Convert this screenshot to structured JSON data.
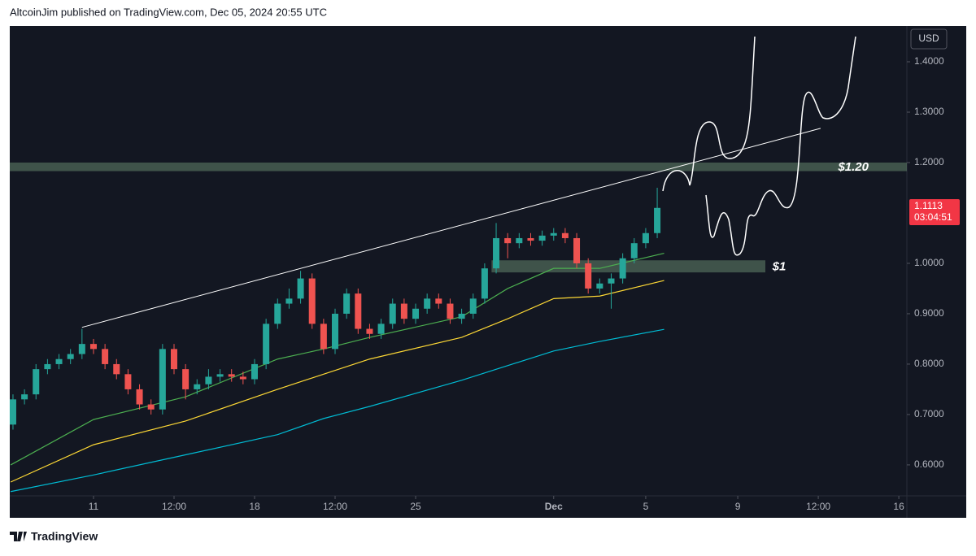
{
  "header": {
    "text": "AltcoinJim published on TradingView.com, Dec 05, 2024 20:55 UTC"
  },
  "footer": {
    "brand": "TradingView"
  },
  "chart_data": {
    "type": "candlestick",
    "currency": "USD",
    "x": [
      -3.5,
      -3,
      -2.5,
      -2,
      -1.5,
      -1,
      -0.5,
      0,
      0.5,
      1,
      1.5,
      2,
      2.5,
      3,
      3.5,
      4,
      4.5,
      5,
      5.5,
      6,
      6.5,
      7,
      7.5,
      8,
      8.5,
      9,
      9.5,
      10,
      10.5,
      11,
      11.5,
      12,
      12.5,
      13,
      13.5,
      14,
      14.5,
      15,
      15.5,
      16,
      16.5,
      17,
      17.5,
      18,
      18.5,
      19,
      19.5,
      20,
      20.5,
      21,
      21.5,
      22,
      22.5,
      23,
      23.5,
      24,
      24.5
    ],
    "open": [
      0.68,
      0.73,
      0.74,
      0.79,
      0.8,
      0.81,
      0.82,
      0.84,
      0.83,
      0.8,
      0.78,
      0.75,
      0.72,
      0.71,
      0.83,
      0.79,
      0.75,
      0.76,
      0.775,
      0.78,
      0.775,
      0.77,
      0.8,
      0.88,
      0.92,
      0.93,
      0.97,
      0.88,
      0.83,
      0.9,
      0.94,
      0.87,
      0.86,
      0.88,
      0.92,
      0.89,
      0.91,
      0.93,
      0.92,
      0.89,
      0.9,
      0.93,
      0.99,
      1.05,
      1.04,
      1.05,
      1.045,
      1.055,
      1.06,
      1.05,
      1.0,
      0.95,
      0.96,
      0.97,
      1.01,
      1.04,
      1.06
    ],
    "high": [
      0.74,
      0.75,
      0.8,
      0.81,
      0.82,
      0.83,
      0.87,
      0.85,
      0.84,
      0.81,
      0.79,
      0.76,
      0.73,
      0.84,
      0.84,
      0.8,
      0.77,
      0.79,
      0.79,
      0.79,
      0.785,
      0.81,
      0.89,
      0.93,
      0.95,
      0.985,
      0.98,
      0.89,
      0.91,
      0.95,
      0.95,
      0.88,
      0.89,
      0.93,
      0.93,
      0.92,
      0.94,
      0.94,
      0.93,
      0.91,
      0.94,
      1.0,
      1.08,
      1.06,
      1.06,
      1.06,
      1.065,
      1.07,
      1.07,
      1.06,
      1.01,
      0.97,
      0.98,
      1.02,
      1.05,
      1.07,
      1.15
    ],
    "low": [
      0.67,
      0.72,
      0.73,
      0.78,
      0.79,
      0.8,
      0.81,
      0.82,
      0.79,
      0.77,
      0.74,
      0.71,
      0.7,
      0.7,
      0.78,
      0.73,
      0.74,
      0.75,
      0.765,
      0.765,
      0.76,
      0.76,
      0.79,
      0.87,
      0.91,
      0.92,
      0.87,
      0.82,
      0.82,
      0.89,
      0.86,
      0.85,
      0.85,
      0.87,
      0.88,
      0.88,
      0.9,
      0.91,
      0.88,
      0.88,
      0.89,
      0.92,
      0.98,
      1.01,
      1.03,
      1.035,
      1.035,
      1.045,
      1.04,
      0.99,
      0.94,
      0.94,
      0.91,
      0.96,
      1.0,
      1.03,
      1.05
    ],
    "close": [
      0.73,
      0.74,
      0.79,
      0.8,
      0.81,
      0.82,
      0.84,
      0.83,
      0.8,
      0.78,
      0.75,
      0.72,
      0.71,
      0.83,
      0.79,
      0.75,
      0.76,
      0.775,
      0.78,
      0.775,
      0.77,
      0.8,
      0.88,
      0.92,
      0.93,
      0.97,
      0.88,
      0.83,
      0.9,
      0.94,
      0.87,
      0.86,
      0.88,
      0.92,
      0.89,
      0.91,
      0.93,
      0.92,
      0.89,
      0.9,
      0.93,
      0.99,
      1.05,
      1.04,
      1.05,
      1.045,
      1.055,
      1.06,
      1.05,
      1.0,
      0.95,
      0.96,
      0.97,
      1.01,
      1.04,
      1.06,
      1.11
    ],
    "up_color": "#26a69a",
    "down_color": "#ef5350",
    "moving_averages": [
      {
        "color": "#4caf50",
        "x": [
          -3.6,
          0,
          4,
          8,
          10,
          12,
          16,
          18,
          20,
          22,
          24.8
        ],
        "values": [
          0.6,
          0.69,
          0.735,
          0.81,
          0.83,
          0.853,
          0.894,
          0.95,
          0.99,
          0.99,
          1.02
        ]
      },
      {
        "color": "#fdd835",
        "x": [
          -3.6,
          0,
          4,
          8,
          12,
          16,
          18,
          20,
          22,
          24.8
        ],
        "values": [
          0.566,
          0.64,
          0.687,
          0.75,
          0.81,
          0.853,
          0.89,
          0.93,
          0.935,
          0.966
        ]
      },
      {
        "color": "#00bcd4",
        "x": [
          -3.6,
          0,
          4,
          8,
          10,
          12,
          16,
          20,
          22,
          24.8
        ],
        "values": [
          0.547,
          0.58,
          0.62,
          0.66,
          0.692,
          0.716,
          0.768,
          0.826,
          0.845,
          0.869
        ]
      }
    ],
    "zones": [
      {
        "label": "$1.20",
        "low": 1.183,
        "high": 1.2,
        "x": [
          -3.64,
          35.35
        ]
      },
      {
        "label": "$1",
        "low": 0.982,
        "high": 1.006,
        "x": [
          17.3,
          29.2
        ]
      }
    ],
    "trendline": {
      "x": [
        -0.5,
        31.6
      ],
      "y": [
        0.873,
        1.268
      ]
    },
    "last_price": 1.1113,
    "countdown": "03:04:51",
    "xlim": [
      -3.64,
      35.35
    ],
    "xticks": [
      {
        "value": 0,
        "label": "11"
      },
      {
        "value": 3.5,
        "label": "12:00"
      },
      {
        "value": 7,
        "label": "18"
      },
      {
        "value": 10.5,
        "label": "12:00"
      },
      {
        "value": 14,
        "label": "25"
      },
      {
        "value": 20,
        "label": "Dec"
      },
      {
        "value": 24,
        "label": "5"
      },
      {
        "value": 28,
        "label": "9"
      },
      {
        "value": 31.5,
        "label": "12:00"
      },
      {
        "value": 35,
        "label": "16"
      }
    ],
    "ylim": [
      0.495,
      1.471
    ],
    "yticks": [
      {
        "value": 0.6,
        "label": "0.6000"
      },
      {
        "value": 0.7,
        "label": "0.7000"
      },
      {
        "value": 0.8,
        "label": "0.8000"
      },
      {
        "value": 0.9,
        "label": "0.9000"
      },
      {
        "value": 1.0,
        "label": "1.0000"
      },
      {
        "value": 1.2,
        "label": "1.2000"
      },
      {
        "value": 1.3,
        "label": "1.3000"
      },
      {
        "value": 1.4,
        "label": "1.4000"
      }
    ]
  }
}
